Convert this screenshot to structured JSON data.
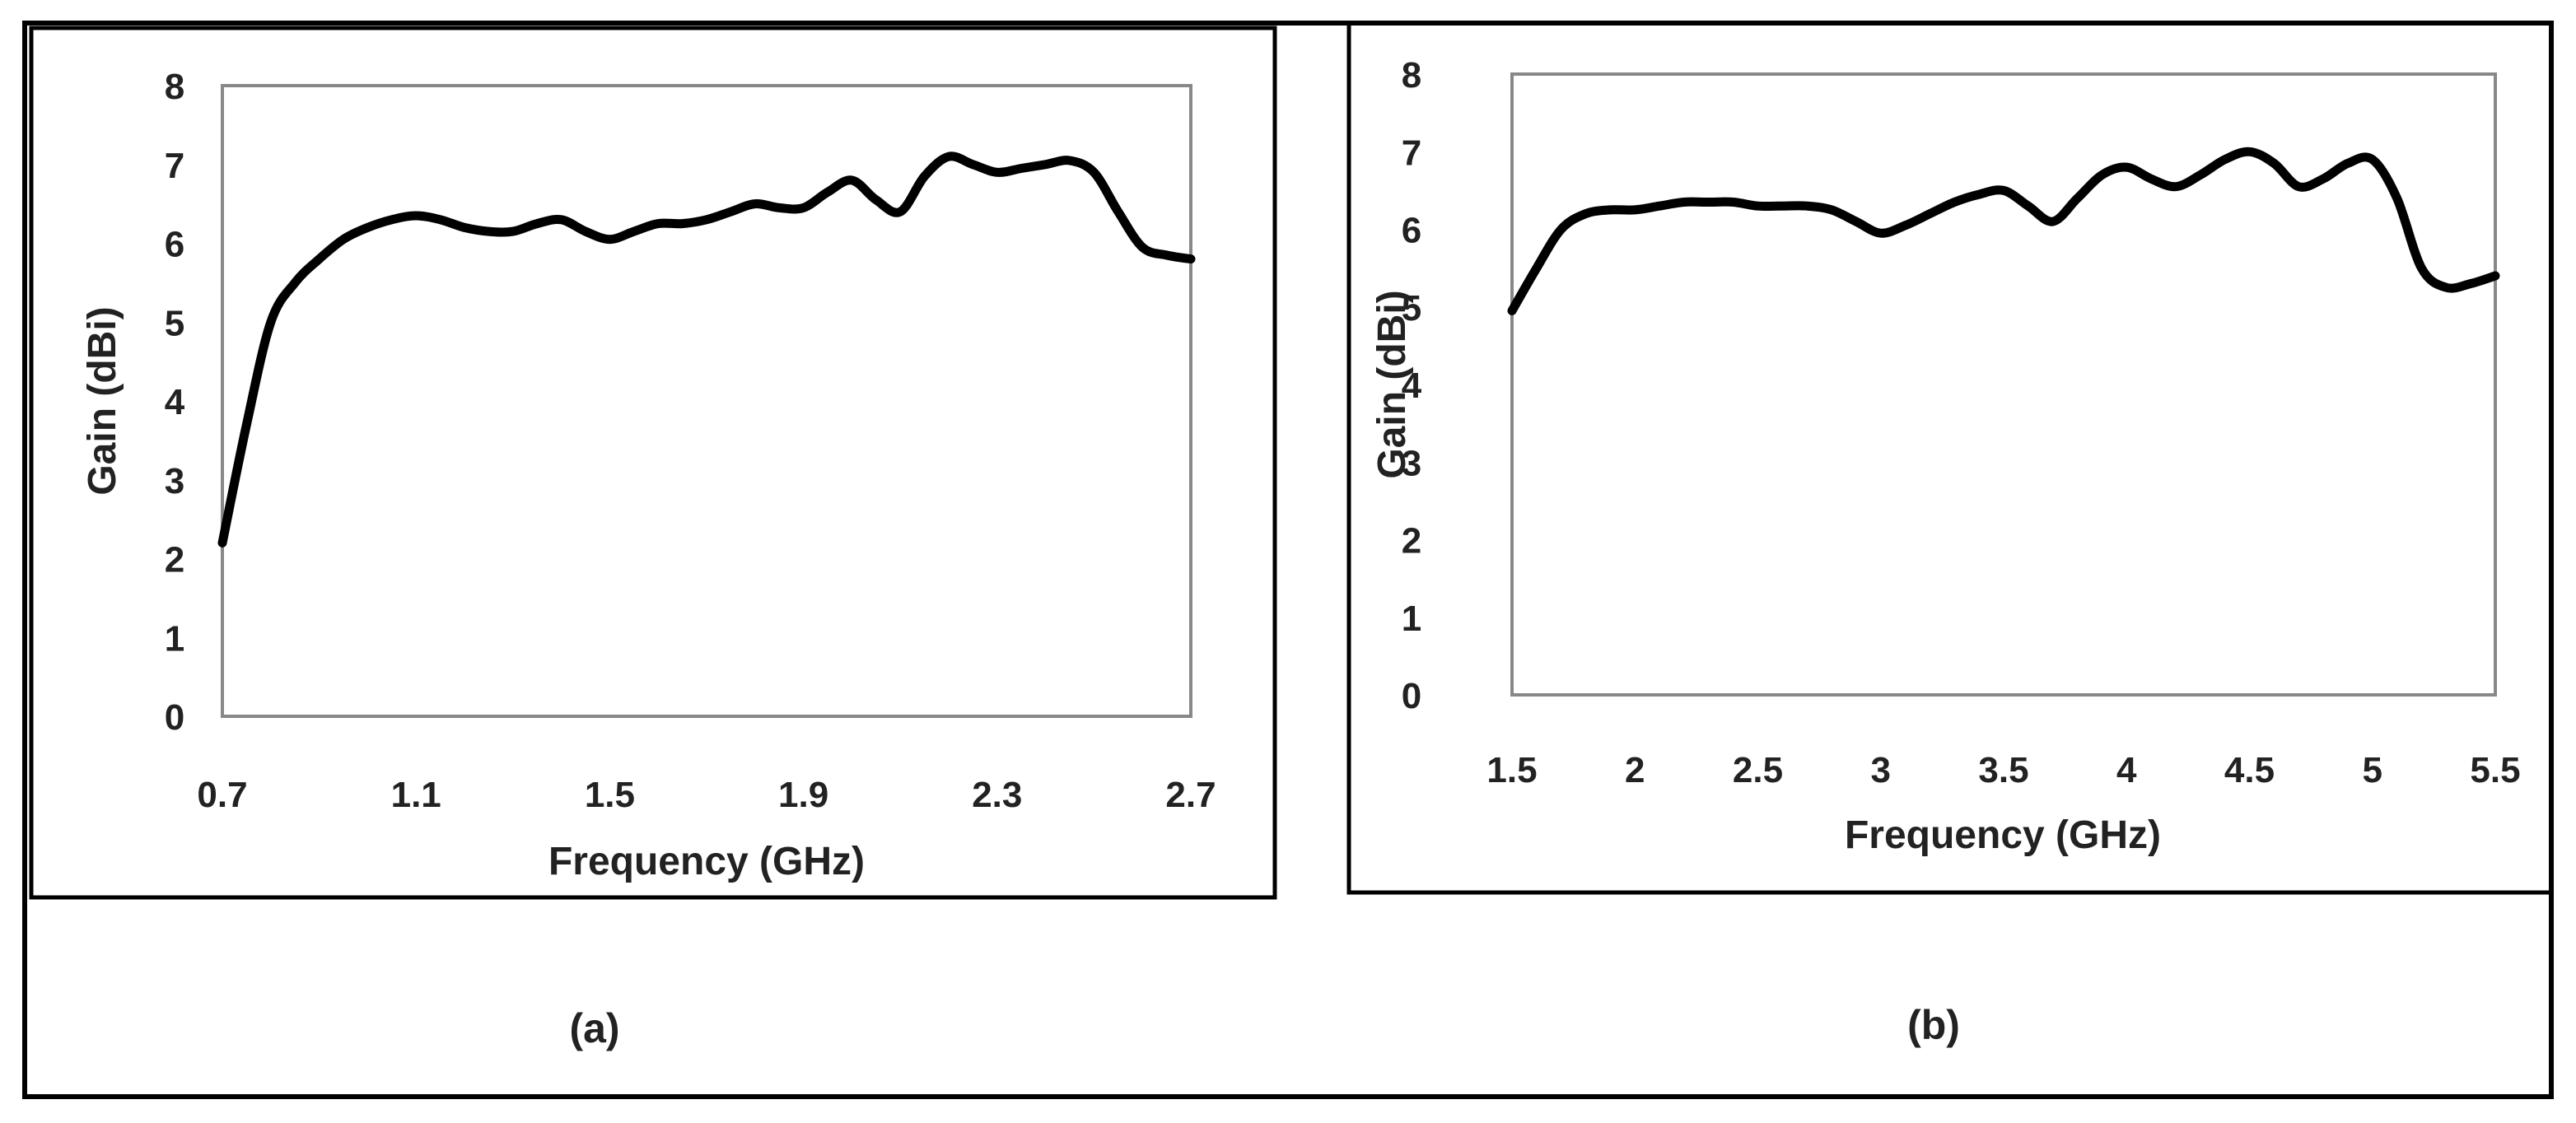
{
  "chart_data": [
    {
      "type": "line",
      "caption": "(a)",
      "xlabel": "Frequency (GHz)",
      "ylabel": "Gain (dBi)",
      "xlim": [
        0.7,
        2.7
      ],
      "ylim": [
        0,
        8
      ],
      "xticks": [
        0.7,
        1.1,
        1.5,
        1.9,
        2.3,
        2.7
      ],
      "xtick_labels": [
        "0.7",
        "1.1",
        "1.5",
        "1.9",
        "2.3",
        "2.7"
      ],
      "yticks": [
        0,
        1,
        2,
        3,
        4,
        5,
        6,
        7,
        8
      ],
      "ytick_labels": [
        "0",
        "1",
        "2",
        "3",
        "4",
        "5",
        "6",
        "7",
        "8"
      ],
      "grid": false,
      "line_color": "#000000",
      "series": [
        {
          "x": [
            0.7,
            0.75,
            0.8,
            0.85,
            0.9,
            0.95,
            1.0,
            1.05,
            1.1,
            1.15,
            1.2,
            1.25,
            1.3,
            1.35,
            1.4,
            1.45,
            1.5,
            1.55,
            1.6,
            1.65,
            1.7,
            1.75,
            1.8,
            1.85,
            1.9,
            1.95,
            2.0,
            2.05,
            2.1,
            2.15,
            2.2,
            2.25,
            2.3,
            2.35,
            2.4,
            2.45,
            2.5,
            2.55,
            2.6,
            2.65,
            2.7
          ],
          "y": [
            2.2,
            3.7,
            5.0,
            5.5,
            5.8,
            6.05,
            6.2,
            6.3,
            6.35,
            6.3,
            6.2,
            6.15,
            6.15,
            6.25,
            6.3,
            6.15,
            6.05,
            6.15,
            6.25,
            6.25,
            6.3,
            6.4,
            6.5,
            6.45,
            6.45,
            6.65,
            6.8,
            6.55,
            6.4,
            6.85,
            7.1,
            7.0,
            6.9,
            6.95,
            7.0,
            7.05,
            6.9,
            6.4,
            5.95,
            5.85,
            5.8
          ]
        }
      ]
    },
    {
      "type": "line",
      "caption": "(b)",
      "xlabel": "Frequency (GHz)",
      "ylabel": "Gain (dBi)",
      "xlim": [
        1.5,
        5.5
      ],
      "ylim": [
        0,
        8
      ],
      "xticks": [
        1.5,
        2,
        2.5,
        3,
        3.5,
        4,
        4.5,
        5,
        5.5
      ],
      "xtick_labels": [
        "1.5",
        "2",
        "2.5",
        "3",
        "3.5",
        "4",
        "4.5",
        "5",
        "5.5"
      ],
      "yticks": [
        0,
        1,
        2,
        3,
        4,
        5,
        6,
        7,
        8
      ],
      "ytick_labels": [
        "0",
        "1",
        "2",
        "3",
        "4",
        "5",
        "6",
        "7",
        "8"
      ],
      "grid": false,
      "line_color": "#000000",
      "series": [
        {
          "x": [
            1.5,
            1.6,
            1.7,
            1.8,
            1.9,
            2.0,
            2.1,
            2.2,
            2.3,
            2.4,
            2.5,
            2.6,
            2.7,
            2.8,
            2.9,
            3.0,
            3.1,
            3.2,
            3.3,
            3.4,
            3.5,
            3.6,
            3.7,
            3.8,
            3.9,
            4.0,
            4.1,
            4.2,
            4.3,
            4.4,
            4.5,
            4.6,
            4.7,
            4.8,
            4.9,
            5.0,
            5.1,
            5.2,
            5.3,
            5.4,
            5.5
          ],
          "y": [
            4.95,
            5.5,
            6.0,
            6.2,
            6.25,
            6.25,
            6.3,
            6.35,
            6.35,
            6.35,
            6.3,
            6.3,
            6.3,
            6.25,
            6.1,
            5.95,
            6.05,
            6.2,
            6.35,
            6.45,
            6.5,
            6.3,
            6.1,
            6.4,
            6.7,
            6.8,
            6.65,
            6.55,
            6.7,
            6.9,
            7.0,
            6.85,
            6.55,
            6.65,
            6.85,
            6.9,
            6.4,
            5.5,
            5.25,
            5.3,
            5.4
          ]
        }
      ]
    }
  ]
}
